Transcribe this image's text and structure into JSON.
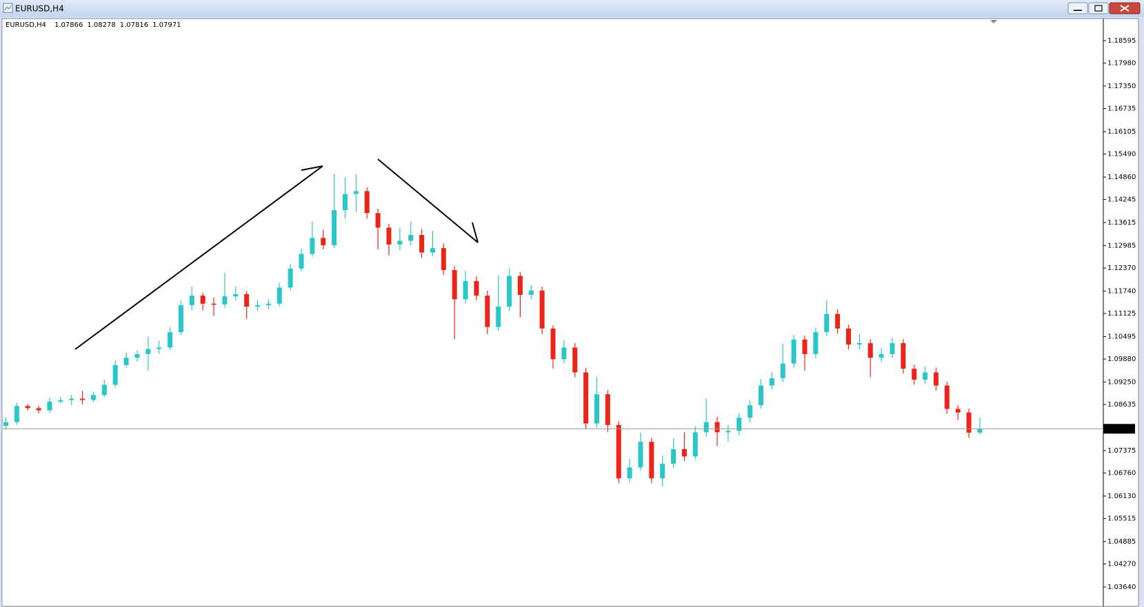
{
  "chart_data": {
    "type": "candlestick",
    "title": "EURUSD,H4",
    "up_color": "#2bc6c8",
    "down_color": "#ee2418",
    "price_line_color": "#9a9a9a",
    "open": [
      1.0805,
      1.08155,
      1.08595,
      1.08535,
      1.08475,
      1.08715,
      1.08755,
      1.08795,
      1.0876,
      1.08895,
      1.09175,
      1.09715,
      1.09915,
      1.10015,
      1.10155,
      1.10195,
      1.10615,
      1.11355,
      1.11615,
      1.11395,
      1.11375,
      1.11595,
      1.11655,
      1.11315,
      1.11355,
      1.11395,
      1.11835,
      1.12355,
      1.12755,
      1.13195,
      1.12995,
      1.13955,
      1.14395,
      1.14475,
      1.13875,
      1.13475,
      1.13015,
      1.13115,
      1.13275,
      1.12795,
      1.12915,
      1.12315,
      1.11515,
      1.12015,
      1.11615,
      1.10755,
      1.11315,
      1.12155,
      1.11635,
      1.11755,
      1.10715,
      1.09875,
      1.10195,
      1.09515,
      1.08115,
      1.08915,
      1.08075,
      1.06615,
      1.06915,
      1.07615,
      1.06615,
      1.07015,
      1.07415,
      1.07215,
      1.07875,
      1.08155,
      1.07875,
      1.07915,
      1.08275,
      1.08615,
      1.09155,
      1.09355,
      1.09755,
      1.10415,
      1.10015,
      1.10615,
      1.11115,
      1.10715,
      1.10275,
      1.10315,
      1.09915,
      1.10015,
      1.10315,
      1.09615,
      1.09315,
      1.09515,
      1.09155,
      1.08515,
      1.08415,
      1.07866
    ],
    "high": [
      1.0829,
      1.0868,
      1.0864,
      1.086,
      1.0883,
      1.0885,
      1.089,
      1.0901,
      1.0899,
      1.0932,
      1.0985,
      1.1006,
      1.1012,
      1.1049,
      1.1038,
      1.1076,
      1.1148,
      1.1186,
      1.117,
      1.1156,
      1.1225,
      1.1187,
      1.1174,
      1.1149,
      1.1151,
      1.1196,
      1.1248,
      1.129,
      1.1364,
      1.1342,
      1.1495,
      1.1485,
      1.1493,
      1.1458,
      1.1399,
      1.1358,
      1.1347,
      1.1364,
      1.1344,
      1.1339,
      1.1304,
      1.1242,
      1.1229,
      1.1214,
      1.1175,
      1.1217,
      1.1236,
      1.1226,
      1.119,
      1.1186,
      1.108,
      1.104,
      1.1032,
      1.0964,
      1.094,
      1.0903,
      1.0818,
      1.0715,
      1.0787,
      1.0772,
      1.0724,
      1.077,
      1.0788,
      1.0804,
      1.088,
      1.083,
      1.0808,
      1.084,
      1.0876,
      1.0933,
      1.0952,
      1.103,
      1.1054,
      1.1052,
      1.1073,
      1.1148,
      1.1124,
      1.1082,
      1.1056,
      1.1042,
      1.1018,
      1.1046,
      1.1042,
      1.0972,
      1.0968,
      1.0964,
      1.0926,
      1.0862,
      1.0852,
      1.08278
    ],
    "low": [
      1.0794,
      1.0808,
      1.0847,
      1.0839,
      1.084,
      1.0865,
      1.0861,
      1.0864,
      1.087,
      1.0884,
      1.091,
      1.0964,
      1.0981,
      1.0956,
      1.1002,
      1.1012,
      1.1054,
      1.1121,
      1.1121,
      1.1106,
      1.1128,
      1.1149,
      1.1098,
      1.112,
      1.1124,
      1.1132,
      1.1176,
      1.1228,
      1.1268,
      1.1288,
      1.1292,
      1.1372,
      1.1391,
      1.1372,
      1.1288,
      1.1272,
      1.1286,
      1.1299,
      1.1265,
      1.1269,
      1.1218,
      1.1042,
      1.114,
      1.1149,
      1.1056,
      1.1065,
      1.112,
      1.1102,
      1.1152,
      1.1056,
      1.0962,
      1.0976,
      1.0938,
      1.0797,
      1.08,
      1.0788,
      1.0648,
      1.0651,
      1.0683,
      1.0648,
      1.0639,
      1.069,
      1.0709,
      1.0712,
      1.0776,
      1.075,
      1.0761,
      1.0778,
      1.0814,
      1.0852,
      1.0905,
      1.0924,
      1.0964,
      1.0956,
      1.099,
      1.105,
      1.1058,
      1.1014,
      1.1015,
      1.0938,
      1.098,
      1.099,
      1.0948,
      1.0918,
      1.092,
      1.0902,
      1.0838,
      1.0821,
      1.0772,
      1.07816
    ],
    "close": [
      1.08155,
      1.08595,
      1.08535,
      1.08475,
      1.08715,
      1.08755,
      1.08795,
      1.0876,
      1.08895,
      1.09175,
      1.09715,
      1.09915,
      1.10015,
      1.10155,
      1.10195,
      1.10615,
      1.11355,
      1.11615,
      1.11395,
      1.11375,
      1.11595,
      1.11655,
      1.11315,
      1.11355,
      1.11395,
      1.11835,
      1.12355,
      1.12755,
      1.13195,
      1.12995,
      1.13955,
      1.14395,
      1.14475,
      1.13875,
      1.13475,
      1.13015,
      1.13115,
      1.13275,
      1.12795,
      1.12915,
      1.12315,
      1.11515,
      1.12015,
      1.11615,
      1.10755,
      1.11315,
      1.12155,
      1.11635,
      1.11755,
      1.10715,
      1.09875,
      1.10195,
      1.09515,
      1.08115,
      1.08915,
      1.08075,
      1.06615,
      1.06915,
      1.07615,
      1.06615,
      1.07015,
      1.07415,
      1.07215,
      1.07875,
      1.08155,
      1.07875,
      1.07915,
      1.08275,
      1.08615,
      1.09155,
      1.09355,
      1.09755,
      1.10415,
      1.10015,
      1.10615,
      1.11115,
      1.10715,
      1.10275,
      1.10315,
      1.09915,
      1.10015,
      1.10315,
      1.09615,
      1.09315,
      1.09515,
      1.09155,
      1.08515,
      1.08415,
      1.07866,
      1.07971
    ],
    "ylim": [
      1.0315,
      1.1914
    ],
    "yticks": [
      1.18595,
      {
        "value": 1.1798,
        "label": "1.17980"
      },
      {
        "value": 1.1735,
        "label": "1.17350"
      },
      1.16735,
      1.16105,
      {
        "value": 1.1549,
        "label": "1.15490"
      },
      {
        "value": 1.1486,
        "label": "1.14860"
      },
      1.14245,
      1.13615,
      1.12985,
      {
        "value": 1.1237,
        "label": "1.12370"
      },
      {
        "value": 1.1174,
        "label": "1.11740"
      },
      1.11125,
      1.10495,
      {
        "value": 1.0988,
        "label": "1.09880"
      },
      {
        "value": 1.0925,
        "label": "1.09250"
      },
      1.08635,
      1.07375,
      {
        "value": 1.0676,
        "label": "1.06760"
      },
      {
        "value": 1.0613,
        "label": "1.06130"
      },
      1.05515,
      1.04885,
      {
        "value": 1.0427,
        "label": "1.04270"
      },
      {
        "value": 1.0364,
        "label": "1.03640"
      }
    ],
    "grid": false
  }
}
